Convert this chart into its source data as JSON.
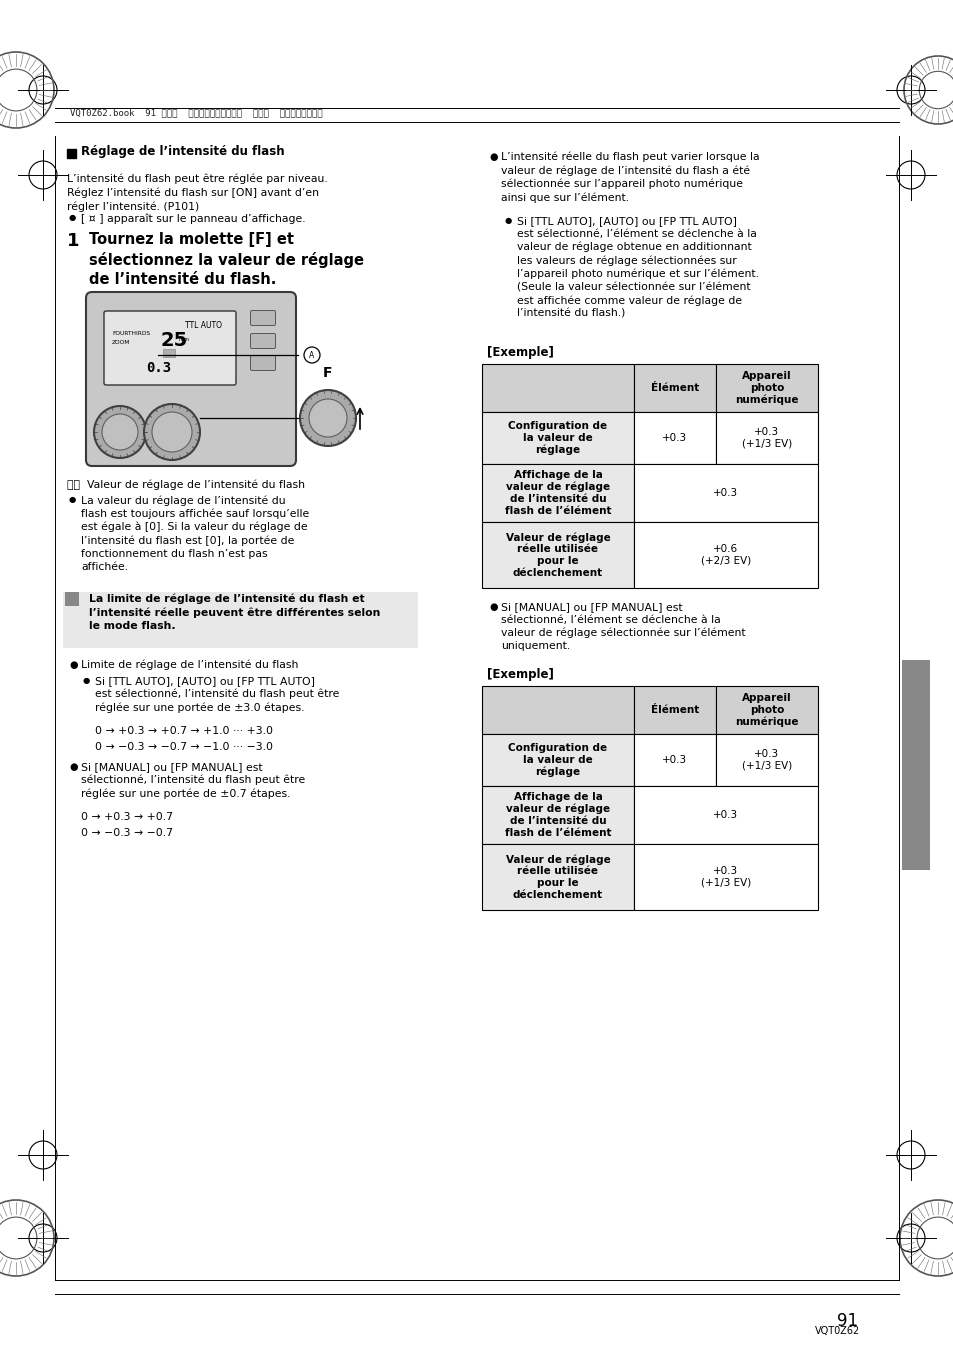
{
  "page_number": "91",
  "page_code": "VQT0Z62",
  "header_text": "VQT0Z62.book  91 ページ  ２００６年６月２２日  木曜日  午前１１時４６分",
  "heading_left": "■  Réglage de l’intensité du flash",
  "para1": "L’intensité du flash peut être réglée par niveau.\nRéglez l’intensité du flash sur [ON] avant d’en\nrégler l’intensité. (P101)",
  "bullet1": "[ ¤ ] apparaît sur le panneau d’affichage.",
  "step1_num": "1",
  "step1_text": "Tournez la molette [F] et\nsélectionnez la valeur de réglage\nde l’intensité du flash.",
  "caption_a": "Ⓐ：  Valeur de réglage de l’intensité du flash",
  "bullet_la": "La valeur du réglage de l’intensité du\nflash est toujours affichée sauf lorsqu’elle\nest égale à [0]. Si la valeur du réglage de\nl’intensité du flash est [0], la portée de\nfonctionnement du flash n’est pas\naffichée.",
  "note_text": "La limite de réglage de l’intensité du flash et\nl’intensité réelle peuvent être différentes selon\nle mode flash.",
  "nb1": "Limite de réglage de l’intensité du flash",
  "nb2": "Si [TTL AUTO], [AUTO] ou [FP TTL AUTO]\nest sélectionné, l’intensité du flash peut être\nréglée sur une portée de ±3.0 étapes.",
  "nb3_pos": "0 → +0.3 → +0.7 → +1.0 ··· +3.0",
  "nb3_neg": "0 → −0.3 → −0.7 → −1.0 ··· −3.0",
  "nb4": "Si [MANUAL] ou [FP MANUAL] est\nsélectionné, l’intensité du flash peut être\nréglée sur une portée de ±0.7 étapes.",
  "nb4_pos": "0 → +0.3 → +0.7",
  "nb4_neg": "0 → −0.3 → −0.7",
  "rb1": "L’intensité réelle du flash peut varier lorsque la\nvaleur de réglage de l’intensité du flash a été\nsélectionnée sur l’appareil photo numérique\nainsi que sur l’élément.",
  "rb1b": "Si [TTL AUTO], [AUTO] ou [FP TTL AUTO]\nest sélectionné, l’élément se déclenche à la\nvaleur de réglage obtenue en additionnant\nles valeurs de réglage sélectionnées sur\nl’appareil photo numérique et sur l’élément.\n(Seule la valeur sélectionnée sur l’élément\nest affichée comme valeur de réglage de\nl’intensité du flash.)",
  "exemple1": "[Exemple]",
  "t1_h0": "",
  "t1_h1": "Élément",
  "t1_h2": "Appareil\nphoto\nnumérique",
  "t1_r1c0": "Configuration de\nla valeur de\nréglage",
  "t1_r1c1": "+0.3",
  "t1_r1c2": "+0.3\n(+1/3 EV)",
  "t1_r2c0": "Affichage de la\nvaleur de réglage\nde l’intensité du\nflash de l’élément",
  "t1_r2c1": "+0.3",
  "t1_r3c0": "Valeur de réglage\nréelle utilisée\npour le\ndéclenchement",
  "t1_r3c1": "+0.6\n(+2/3 EV)",
  "rb2": "Si [MANUAL] ou [FP MANUAL] est\nsélectionné, l’élément se déclenche à la\nvaleur de réglage sélectionnée sur l’élément\nuniquement.",
  "exemple2": "[Exemple]",
  "t2_h0": "",
  "t2_h1": "Élément",
  "t2_h2": "Appareil\nphoto\nnumérique",
  "t2_r1c0": "Configuration de\nla valeur de\nréglage",
  "t2_r1c1": "+0.3",
  "t2_r1c2": "+0.3\n(+1/3 EV)",
  "t2_r2c0": "Affichage de la\nvaleur de réglage\nde l’intensité du\nflash de l’élément",
  "t2_r2c1": "+0.3",
  "t2_r3c0": "Valeur de réglage\nréelle utilisée\npour le\ndéclenchement",
  "t2_r3c1": "+0.3\n(+1/3 EV)"
}
